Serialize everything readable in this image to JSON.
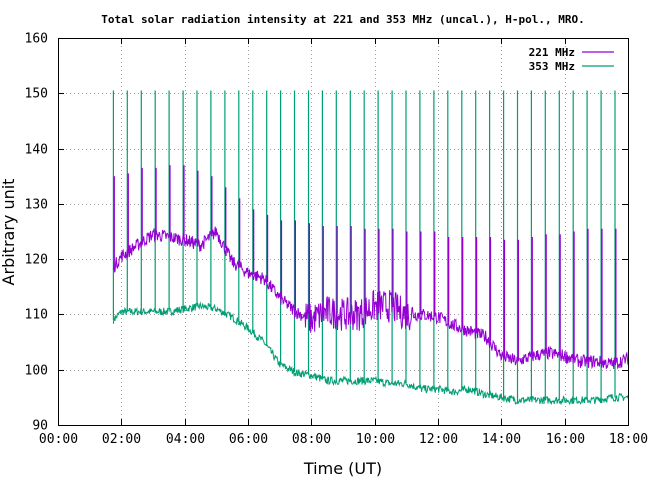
{
  "chart_data": {
    "type": "line",
    "title": "Total solar radiation intensity at 221 and 353 MHz (uncal.), H-pol., MRO.",
    "xlabel": "Time (UT)",
    "ylabel": "Arbitrary unit",
    "xlim": [
      0,
      18
    ],
    "ylim": [
      90,
      160
    ],
    "xticks": [
      "00:00",
      "02:00",
      "04:00",
      "06:00",
      "08:00",
      "10:00",
      "12:00",
      "14:00",
      "16:00",
      "18:00"
    ],
    "yticks": [
      90,
      100,
      110,
      120,
      130,
      140,
      150,
      160
    ],
    "grid": true,
    "legend_position": "top-right",
    "series": [
      {
        "name": "221 MHz",
        "color": "#9400d3",
        "x": [
          1.75,
          2.0,
          2.5,
          3.0,
          3.5,
          4.0,
          4.5,
          5.0,
          5.5,
          6.0,
          6.5,
          7.0,
          7.5,
          8.0,
          8.5,
          9.0,
          9.5,
          10.0,
          10.5,
          11.0,
          11.5,
          12.0,
          12.5,
          13.0,
          13.5,
          14.0,
          14.5,
          15.0,
          15.5,
          16.0,
          16.5,
          17.0,
          17.5,
          18.0
        ],
        "values": [
          118.5,
          120.5,
          122.5,
          124.5,
          124.0,
          123.5,
          122.5,
          125.0,
          119.5,
          117.5,
          116.5,
          113.0,
          110.5,
          109.0,
          110.5,
          110.0,
          110.0,
          111.5,
          111.5,
          110.0,
          110.0,
          109.5,
          108.0,
          107.0,
          106.0,
          102.5,
          101.5,
          102.5,
          103.0,
          102.5,
          101.5,
          101.5,
          101.0,
          102.0
        ],
        "spike_peaks": [
          135,
          135.5,
          136.5,
          136.5,
          137,
          137,
          136,
          135,
          133,
          131,
          129,
          128,
          127,
          127,
          126.5,
          126,
          126,
          126,
          125.5,
          125.5,
          125.5,
          125,
          125,
          125,
          124,
          124,
          124,
          124,
          123.5,
          123.5,
          124,
          124.5,
          124.5,
          125,
          125.5,
          125.5,
          125.5
        ]
      },
      {
        "name": "353 MHz",
        "color": "#009e73",
        "x": [
          1.75,
          2.0,
          2.5,
          3.0,
          3.5,
          4.0,
          4.5,
          5.0,
          5.5,
          6.0,
          6.5,
          7.0,
          7.5,
          8.0,
          8.5,
          9.0,
          9.5,
          10.0,
          10.5,
          11.0,
          11.5,
          12.0,
          12.5,
          13.0,
          13.5,
          14.0,
          14.5,
          15.0,
          15.5,
          16.0,
          16.5,
          17.0,
          17.5,
          18.0
        ],
        "values": [
          109.0,
          110.5,
          110.5,
          110.5,
          110.5,
          111.0,
          111.5,
          111.0,
          109.5,
          107.5,
          105.0,
          101.0,
          99.5,
          99.0,
          98.0,
          98.0,
          98.0,
          98.0,
          97.5,
          97.5,
          96.5,
          96.5,
          96.0,
          96.5,
          95.5,
          95.0,
          94.5,
          94.5,
          94.5,
          94.5,
          94.5,
          94.5,
          95.0,
          95.0
        ],
        "spike_peaks": [
          150.5,
          150.5,
          150.5,
          150.5,
          150.5,
          150.5,
          150.5,
          150.5,
          150.5,
          150.5,
          150.5,
          150.5,
          150.5,
          150.5,
          150.5,
          150.5,
          150.5,
          150.5,
          150.5,
          150.5,
          150.5,
          150.5,
          150.5,
          150.5,
          150.5,
          150.5,
          150.5,
          150.5,
          150.5,
          150.5,
          150.5,
          150.5,
          150.5,
          150.5,
          150.5,
          150.5,
          150.5
        ],
        "spike_start": 1.75,
        "spike_interval_hours": 0.44
      }
    ]
  }
}
